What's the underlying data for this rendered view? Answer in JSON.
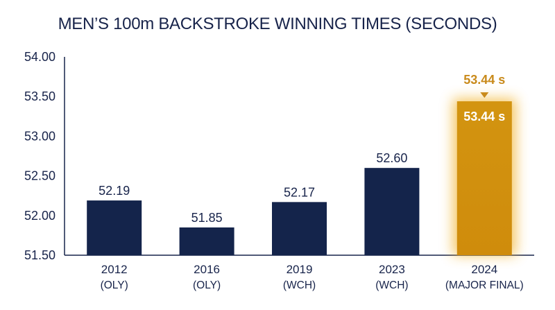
{
  "chart_data": {
    "type": "bar",
    "title": "MEN’S 100m BACKSTROKE WINNING TIMES (SECONDS)",
    "xlabel": "",
    "ylabel": "",
    "categories": [
      {
        "year": "2012",
        "event": "(OLY)"
      },
      {
        "year": "2016",
        "event": "(OLY)"
      },
      {
        "year": "2019",
        "event": "(WCH)"
      },
      {
        "year": "2023",
        "event": "(WCH)"
      },
      {
        "year": "2024",
        "event": "(MAJOR FINAL)"
      }
    ],
    "values": [
      52.19,
      51.85,
      52.17,
      52.6,
      53.44
    ],
    "value_labels": [
      "52.19",
      "51.85",
      "52.17",
      "52.60",
      "53.44 s"
    ],
    "highlight_index": 4,
    "highlight_callout": "53.44 s",
    "ylim": [
      51.5,
      54.0
    ],
    "yticks": [
      "51.50",
      "52.00",
      "52.50",
      "53.00",
      "53.50",
      "54.00"
    ],
    "grid": false,
    "legend": "none",
    "colors": {
      "bar": "#14244b",
      "highlight": "#d4930f",
      "highlight_glow": "#f2b530",
      "highlight_text": "#c98a1a",
      "axis": "#17234a",
      "text": "#17234a"
    }
  }
}
